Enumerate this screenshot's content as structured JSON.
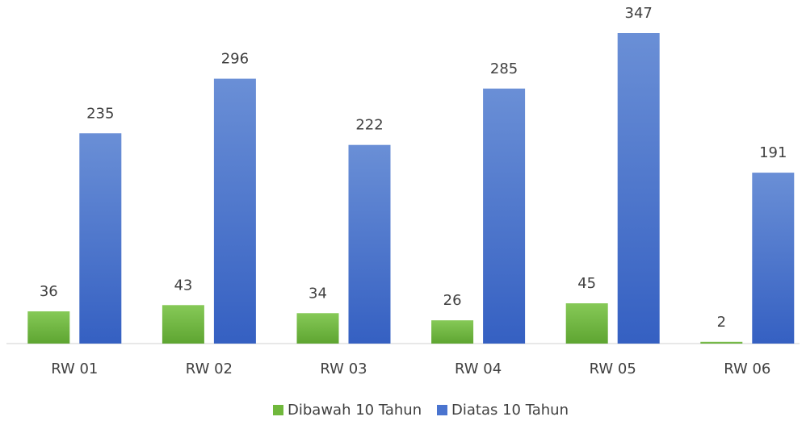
{
  "chart_data": {
    "type": "bar",
    "categories": [
      "RW 01",
      "RW 02",
      "RW 03",
      "RW 04",
      "RW 05",
      "RW 06"
    ],
    "series": [
      {
        "name": "Dibawah 10 Tahun",
        "color": "#70b83c",
        "values": [
          36,
          43,
          34,
          26,
          45,
          2
        ]
      },
      {
        "name": "Diatas 10 Tahun",
        "color": "#4a74cf",
        "values": [
          235,
          296,
          222,
          285,
          347,
          191
        ]
      }
    ],
    "legend": "bottom"
  }
}
